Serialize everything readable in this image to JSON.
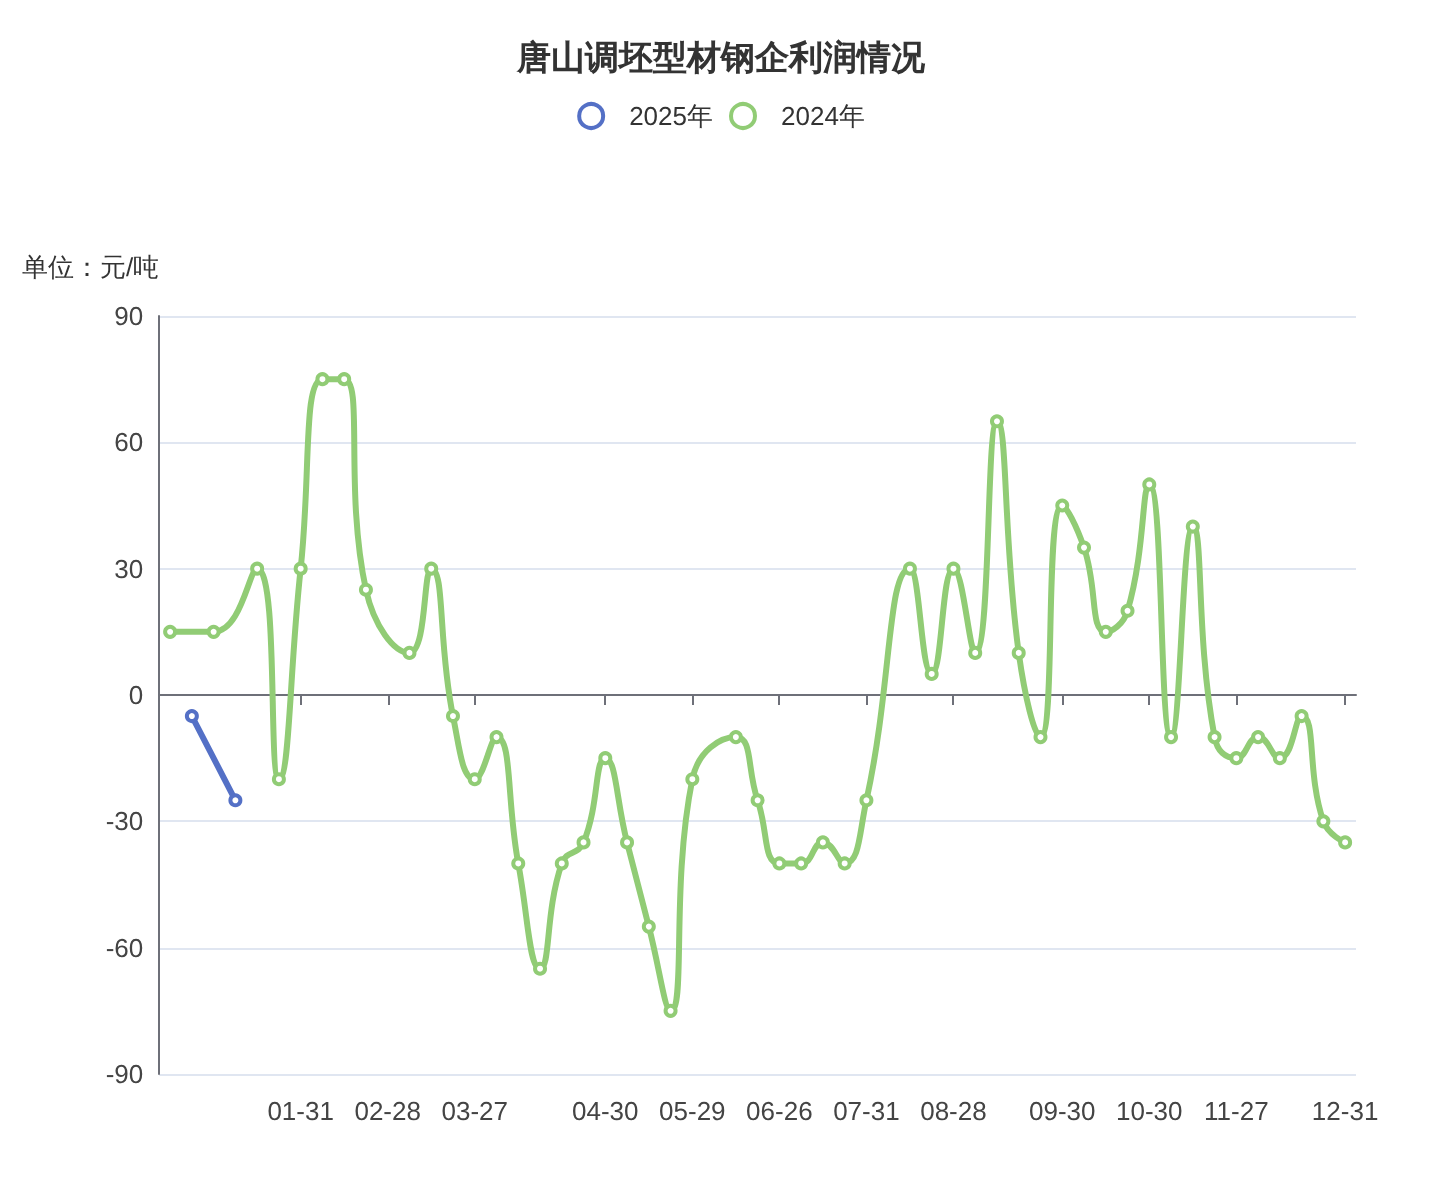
{
  "chart_data": {
    "type": "line",
    "title": "唐山调坯型材钢企利润情况",
    "ylabel": "单位：元/吨",
    "categories": [
      null,
      null,
      null,
      null,
      null,
      null,
      "01-31",
      null,
      null,
      null,
      "02-28",
      null,
      null,
      null,
      "03-27",
      null,
      null,
      null,
      null,
      null,
      "04-30",
      null,
      null,
      null,
      "05-29",
      null,
      null,
      null,
      "06-26",
      null,
      null,
      null,
      "07-31",
      null,
      null,
      null,
      "08-28",
      null,
      null,
      null,
      null,
      "09-30",
      null,
      null,
      null,
      "10-30",
      null,
      null,
      null,
      "11-27",
      null,
      null,
      null,
      null,
      "12-31"
    ],
    "series": [
      {
        "name": "2025年",
        "color": "#5470c6",
        "values": [
          null,
          -5,
          null,
          -25,
          null,
          null,
          null,
          null,
          null,
          null,
          null,
          null,
          null,
          null,
          null,
          null,
          null,
          null,
          null,
          null,
          null,
          null,
          null,
          null,
          null,
          null,
          null,
          null,
          null,
          null,
          null,
          null,
          null,
          null,
          null,
          null,
          null,
          null,
          null,
          null,
          null,
          null,
          null,
          null,
          null,
          null,
          null,
          null,
          null,
          null,
          null,
          null,
          null,
          null,
          null
        ]
      },
      {
        "name": "2024年",
        "color": "#91cc75",
        "values": [
          15,
          null,
          15,
          null,
          30,
          -20,
          30,
          75,
          75,
          25,
          null,
          10,
          30,
          -5,
          -20,
          -10,
          -40,
          -65,
          -40,
          -35,
          -15,
          -35,
          -55,
          -75,
          -20,
          null,
          -10,
          -25,
          -40,
          -40,
          -35,
          -40,
          -25,
          null,
          30,
          5,
          30,
          10,
          65,
          10,
          -10,
          45,
          35,
          15,
          20,
          50,
          -10,
          40,
          -10,
          -15,
          -10,
          -15,
          -5,
          -30,
          -35
        ]
      }
    ],
    "ylim": [
      -90,
      90
    ],
    "yticks": [
      -90,
      -60,
      -30,
      0,
      30,
      60,
      90
    ],
    "grid": "y",
    "legend": "top",
    "marker": "circle",
    "line_style": "solid"
  }
}
